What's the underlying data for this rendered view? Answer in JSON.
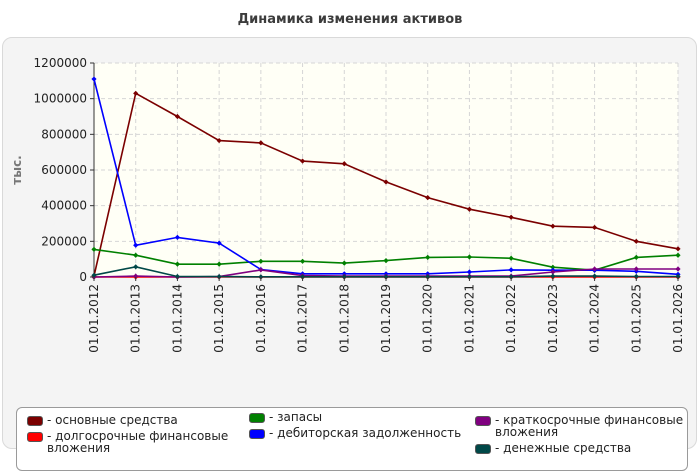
{
  "title": "Динамика изменения активов",
  "chart_data": {
    "type": "line",
    "ylabel": "тыс.",
    "ylim": [
      0,
      1200000
    ],
    "yticks": [
      0,
      200000,
      400000,
      600000,
      800000,
      1000000,
      1200000
    ],
    "categories": [
      "01.01.2012",
      "01.01.2013",
      "01.01.2014",
      "01.01.2015",
      "01.01.2016",
      "01.01.2017",
      "01.01.2018",
      "01.01.2019",
      "01.01.2020",
      "01.01.2021",
      "01.01.2022",
      "01.01.2023",
      "01.01.2024",
      "01.01.2025",
      "01.01.2026"
    ],
    "grid": true,
    "legend_position": "bottom",
    "series": [
      {
        "name": "- основные средства",
        "color": "#7b0000",
        "values": [
          5000,
          1030000,
          900000,
          765000,
          752000,
          650000,
          635000,
          533000,
          445000,
          380000,
          335000,
          285000,
          278000,
          200000,
          158000
        ]
      },
      {
        "name": "- долгосрочные финансовые\nвложения",
        "color": "#ff0000",
        "values": [
          0,
          0,
          0,
          0,
          0,
          0,
          0,
          0,
          0,
          0,
          0,
          0,
          0,
          0,
          0
        ]
      },
      {
        "name": "- запасы",
        "color": "#008000",
        "values": [
          155000,
          122000,
          72000,
          72000,
          88000,
          88000,
          78000,
          92000,
          110000,
          112000,
          105000,
          55000,
          38000,
          110000,
          122000
        ]
      },
      {
        "name": "- дебиторская задолженность",
        "color": "#0000ff",
        "values": [
          1110000,
          178000,
          222000,
          190000,
          42000,
          18000,
          18000,
          18000,
          18000,
          28000,
          40000,
          38000,
          38000,
          32000,
          15000
        ]
      },
      {
        "name": "- краткосрочные финансовые\nвложения",
        "color": "#800080",
        "values": [
          0,
          5000,
          0,
          2000,
          40000,
          8000,
          5000,
          5000,
          5000,
          5000,
          5000,
          28000,
          45000,
          45000,
          45000
        ]
      },
      {
        "name": "- денежные средства",
        "color": "#004848",
        "values": [
          10000,
          57000,
          3000,
          2000,
          1000,
          1000,
          1000,
          1000,
          1000,
          1000,
          1000,
          5000,
          5000,
          3000,
          3000
        ]
      }
    ]
  }
}
